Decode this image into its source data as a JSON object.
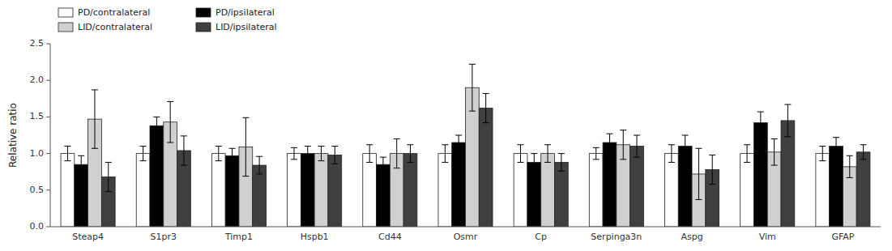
{
  "chart_data": {
    "type": "bar",
    "categories": [
      "Steap4",
      "S1pr3",
      "Timp1",
      "Hspb1",
      "Cd44",
      "Osmr",
      "Cp",
      "Serpinga3n",
      "Aspg",
      "Vim",
      "GFAP"
    ],
    "series": [
      {
        "name": "PD/contralateral",
        "color": "white",
        "values": [
          1.0,
          1.0,
          1.0,
          1.0,
          1.0,
          1.0,
          1.0,
          1.0,
          1.0,
          1.0,
          1.0
        ],
        "errors": [
          0.1,
          0.1,
          0.1,
          0.08,
          0.12,
          0.12,
          0.12,
          0.08,
          0.12,
          0.12,
          0.1
        ]
      },
      {
        "name": "PD/ipsilateral",
        "color": "black",
        "values": [
          0.85,
          1.38,
          0.97,
          1.0,
          0.85,
          1.15,
          0.88,
          1.15,
          1.1,
          1.42,
          1.1
        ],
        "errors": [
          0.12,
          0.12,
          0.1,
          0.1,
          0.1,
          0.1,
          0.12,
          0.12,
          0.15,
          0.15,
          0.12
        ]
      },
      {
        "name": "LID/contralateral",
        "color": "#d0d0d0",
        "values": [
          1.47,
          1.43,
          1.09,
          1.0,
          1.0,
          1.9,
          1.0,
          1.12,
          0.72,
          1.02,
          0.82
        ],
        "errors": [
          0.4,
          0.28,
          0.4,
          0.1,
          0.2,
          0.32,
          0.12,
          0.2,
          0.35,
          0.18,
          0.15
        ]
      },
      {
        "name": "LID/ipsilateral",
        "color": "#404040",
        "values": [
          0.68,
          1.04,
          0.84,
          0.98,
          1.0,
          1.62,
          0.88,
          1.1,
          0.78,
          1.45,
          1.02
        ],
        "errors": [
          0.2,
          0.2,
          0.12,
          0.12,
          0.12,
          0.2,
          0.12,
          0.15,
          0.2,
          0.22,
          0.1
        ]
      }
    ],
    "ylabel": "Relative ratio",
    "ylim": [
      0,
      2.5
    ],
    "yticks": [
      {
        "value": 0.0,
        "label": "0.0"
      },
      0.5,
      {
        "value": 1.0,
        "label": "1.0"
      },
      1.5,
      {
        "value": 2.0,
        "label": "2.0"
      },
      2.5
    ],
    "grid": false,
    "legend": "upper left"
  }
}
